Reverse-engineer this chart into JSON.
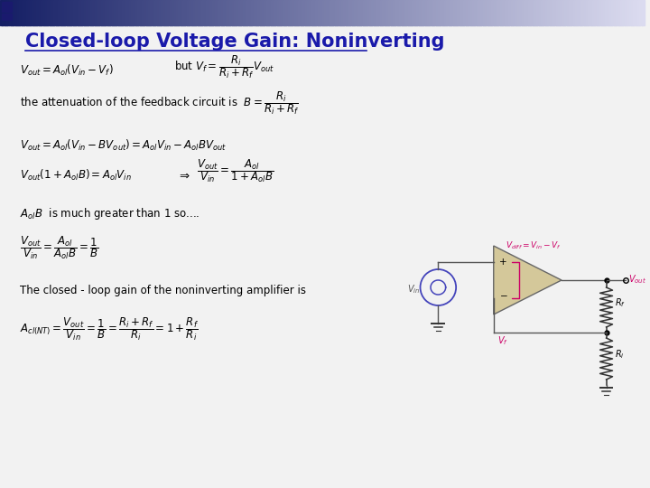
{
  "title": "Closed-loop Voltage Gain: Noninverting",
  "title_color": "#1a1aaa",
  "slide_bg": "#f2f2f2",
  "text_color": "#000000",
  "magenta_color": "#cc0066",
  "circuit_color": "#555555",
  "fs_title": 15,
  "fs_eq": 8.5,
  "fs_text": 9,
  "fs_circuit": 7
}
